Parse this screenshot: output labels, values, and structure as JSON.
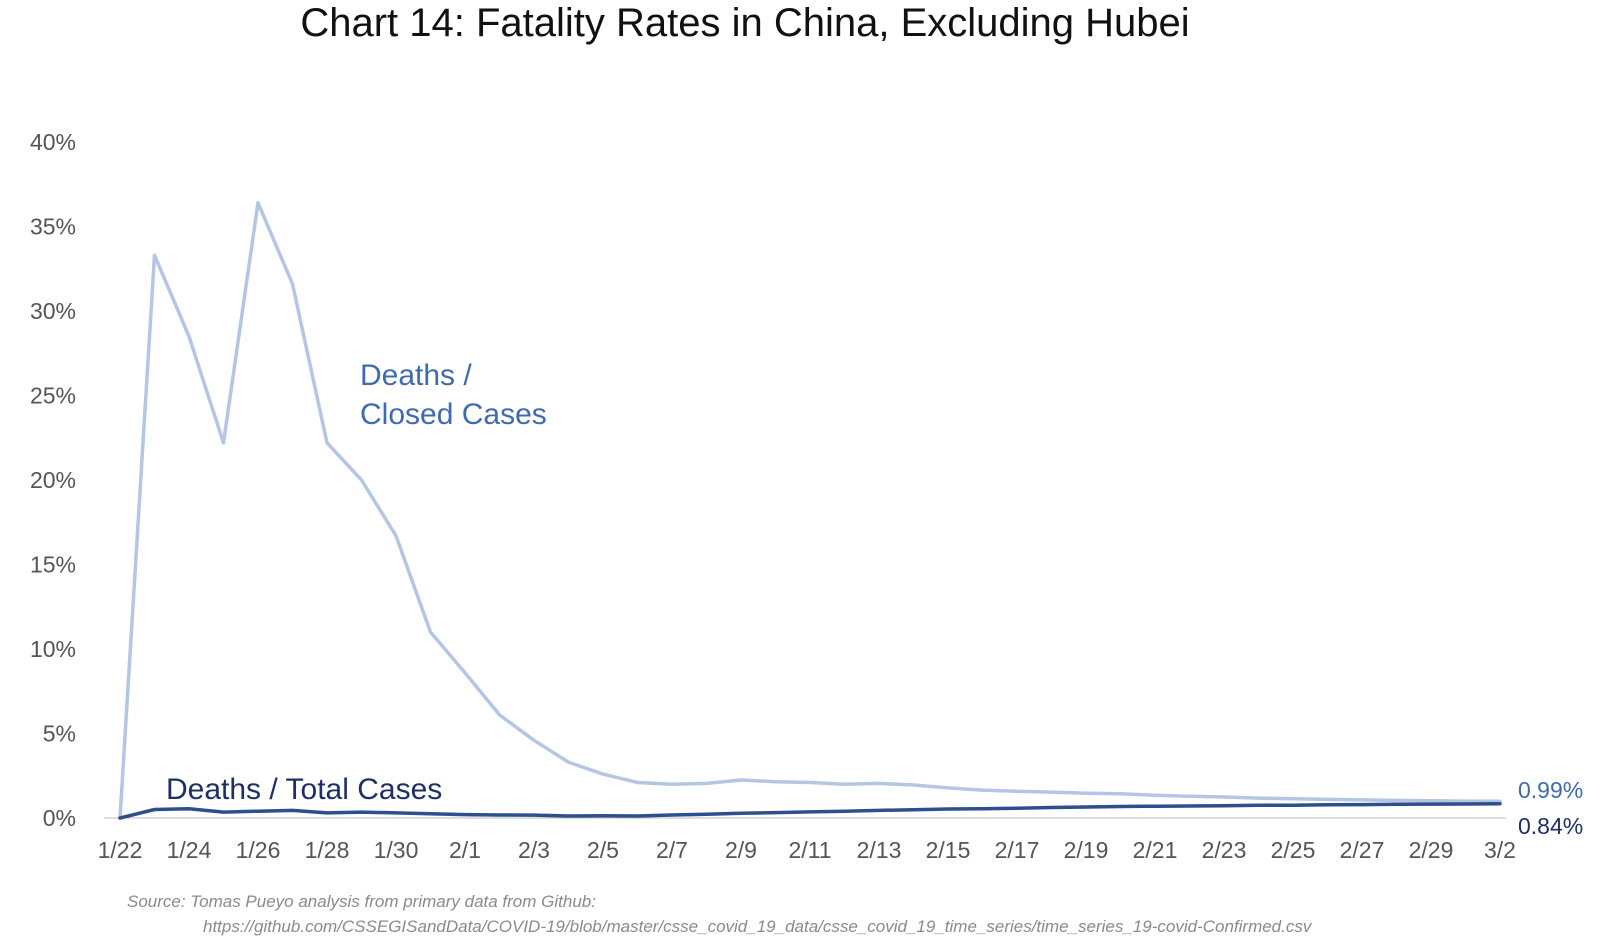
{
  "chart_data": {
    "type": "line",
    "title": "Chart 14: Fatality Rates in China, Excluding Hubei",
    "xlabel": "",
    "ylabel": "",
    "ylim": [
      0,
      0.4
    ],
    "y_ticks": [
      "0%",
      "5%",
      "10%",
      "15%",
      "20%",
      "25%",
      "30%",
      "35%",
      "40%"
    ],
    "x_tick_labels": [
      "1/22",
      "1/24",
      "1/26",
      "1/28",
      "1/30",
      "2/1",
      "2/3",
      "2/5",
      "2/7",
      "2/9",
      "2/11",
      "2/13",
      "2/15",
      "2/17",
      "2/19",
      "2/21",
      "2/23",
      "2/25",
      "2/27",
      "2/29",
      "3/2"
    ],
    "x": [
      "1/22",
      "1/23",
      "1/24",
      "1/25",
      "1/26",
      "1/27",
      "1/28",
      "1/29",
      "1/30",
      "1/31",
      "2/1",
      "2/2",
      "2/3",
      "2/4",
      "2/5",
      "2/6",
      "2/7",
      "2/8",
      "2/9",
      "2/10",
      "2/11",
      "2/12",
      "2/13",
      "2/14",
      "2/15",
      "2/16",
      "2/17",
      "2/18",
      "2/19",
      "2/20",
      "2/21",
      "2/22",
      "2/23",
      "2/24",
      "2/25",
      "2/26",
      "2/27",
      "2/28",
      "2/29",
      "3/1",
      "3/2"
    ],
    "grid": false,
    "series": [
      {
        "name": "Deaths / Closed Cases",
        "color": "#b4c6e4",
        "label_color": "#3f6ab3",
        "end_label": "0.99%",
        "values": [
          0,
          0.333,
          0.285,
          0.222,
          0.364,
          0.316,
          0.222,
          0.2,
          0.167,
          0.11,
          0.086,
          0.061,
          0.046,
          0.033,
          0.026,
          0.021,
          0.02,
          0.0205,
          0.0225,
          0.0215,
          0.021,
          0.02,
          0.0205,
          0.0195,
          0.0178,
          0.0165,
          0.0158,
          0.0153,
          0.0147,
          0.0143,
          0.0135,
          0.0129,
          0.0124,
          0.0118,
          0.0114,
          0.011,
          0.0107,
          0.0104,
          0.0102,
          0.01,
          0.0099
        ]
      },
      {
        "name": "Deaths / Total Cases",
        "color": "#2d4f8c",
        "label_color": "#1c2f66",
        "end_label": "0.84%",
        "values": [
          0,
          0.005,
          0.0055,
          0.0035,
          0.004,
          0.0045,
          0.003,
          0.0035,
          0.003,
          0.0025,
          0.002,
          0.0018,
          0.0017,
          0.0012,
          0.0013,
          0.0012,
          0.0018,
          0.0022,
          0.0028,
          0.0032,
          0.0036,
          0.004,
          0.0045,
          0.0049,
          0.0053,
          0.0055,
          0.0058,
          0.0062,
          0.0065,
          0.0068,
          0.007,
          0.0071,
          0.0073,
          0.0075,
          0.0076,
          0.0078,
          0.0079,
          0.0081,
          0.0082,
          0.0083,
          0.0084
        ]
      }
    ],
    "source_line1": "Source: Tomas Pueyo analysis from primary data from Github:",
    "source_line2": "https://github.com/CSSEGISandData/COVID-19/blob/master/csse_covid_19_data/csse_covid_19_time_series/time_series_19-covid-Confirmed.csv"
  }
}
